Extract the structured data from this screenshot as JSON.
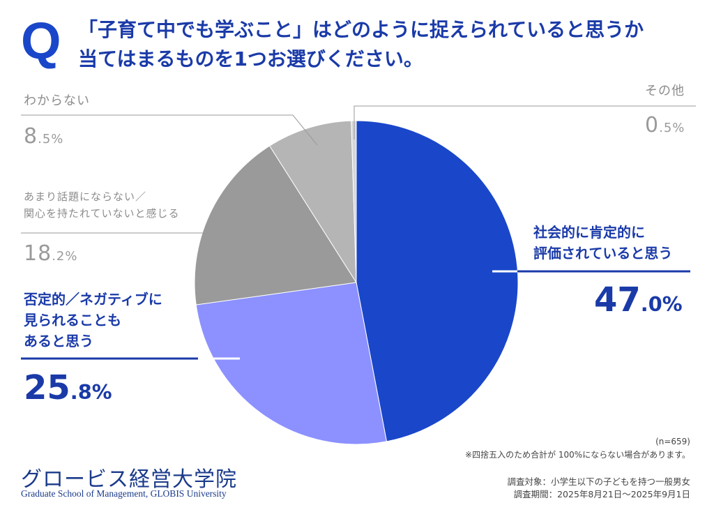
{
  "question": {
    "mark": "Q",
    "line1": "「子育て中でも学ぶこと」はどのように捉えられていると思うか",
    "line2": "当てはまるものを1つお選びください。"
  },
  "chart_data": {
    "type": "pie",
    "title": "「子育て中でも学ぶこと」はどのように捉えられていると思うか",
    "start": "12 o'clock, clockwise",
    "slices": [
      {
        "label": "社会的に肯定的に評価されていると思う",
        "value": 47.0,
        "color": "#1a47c9"
      },
      {
        "label": "否定的／ネガティブに見られることもあると思う",
        "value": 25.8,
        "color": "#8c91ff"
      },
      {
        "label": "あまり話題にならない／関心を持たれていないと感じる",
        "value": 18.2,
        "color": "#9a9a9a"
      },
      {
        "label": "わからない",
        "value": 8.5,
        "color": "#b5b5b5"
      },
      {
        "label": "その他",
        "value": 0.5,
        "color": "#d6d6d6"
      }
    ]
  },
  "labels": {
    "positive": {
      "line1": "社会的に肯定的に",
      "line2": "評価されていると思う",
      "num": "47",
      "pct": ".0%"
    },
    "negative": {
      "line1": "否定的／ネガティブに",
      "line2": "見られることも",
      "line3": "あると思う",
      "num": "25",
      "pct": ".8%"
    },
    "not_topic": {
      "line1": "あまり話題にならない／",
      "line2": "関心を持たれていないと感じる",
      "num": "18",
      "pct": ".2%"
    },
    "unknown": {
      "line1": "わからない",
      "num": "8",
      "pct": ".5%"
    },
    "other": {
      "line1": "その他",
      "num": "0",
      "pct": ".5%"
    }
  },
  "notes": {
    "n": "(n=659)",
    "rounding": "※四捨五入のため合計が 100%にならない場合があります。",
    "target": "調査対象：小学生以下の子どもを持つ一般男女",
    "period": "調査期間：2025年8月21日〜2025年9月1日"
  },
  "logo": {
    "jp": "グロービス経営大学院",
    "en": "Graduate School of Management, GLOBIS University"
  }
}
